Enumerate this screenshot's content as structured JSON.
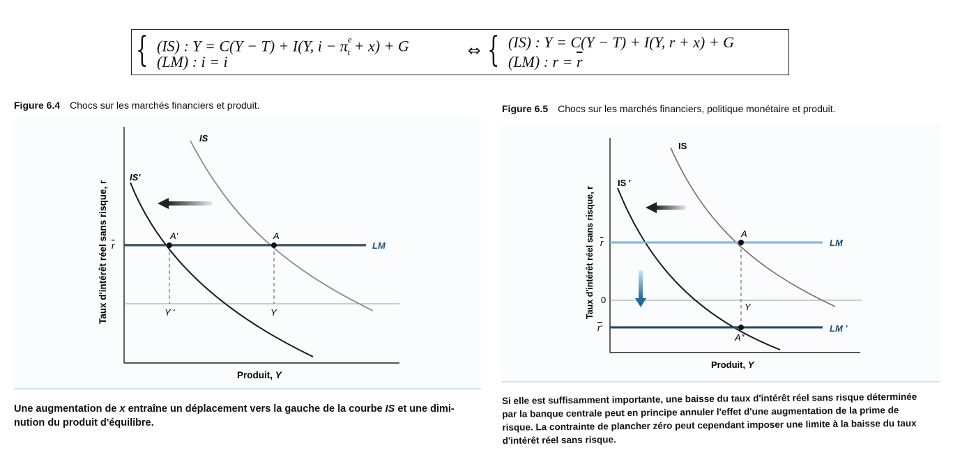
{
  "equation": {
    "left": {
      "line1": "(IS) : Y = C(Y − T) + I(Y, i − π",
      "line1_sup": "e",
      "line1_sub": "t",
      "line1_end": " + x) + G",
      "line2": "(LM) : i = i"
    },
    "equiv": "⇔",
    "right": {
      "line1": "(IS) : Y = C(Y − T) + I(Y, r + x) + G",
      "line2_prefix": "(LM) : r = ",
      "line2_rbar": "r"
    }
  },
  "fig1": {
    "number": "Figure 6.4",
    "title": "Chocs sur les marchés financiers et produit.",
    "ylabel": "Taux d'intérêt réel sans risque, r",
    "xlabel_prefix": "Produit, ",
    "xlabel_var": "Y",
    "labels": {
      "IS": "IS",
      "ISp": "IS'",
      "LM": "LM",
      "rbar": "r",
      "A": "A",
      "Ap": "A'",
      "Y": "Y",
      "Yp": "Y '"
    },
    "caption_part1": "Une augmentation de ",
    "caption_x": "x",
    "caption_part2": " entraîne un déplacement vers la gauche de la courbe ",
    "caption_IS": "IS",
    "caption_part3": " et une dimi-",
    "caption_line2": "nution du produit d'équilibre."
  },
  "fig2": {
    "number": "Figure 6.5",
    "title": "Chocs sur les marchés financiers, politique monétaire et produit.",
    "ylabel": "Taux d'intérêt réel sans risque, r",
    "xlabel_prefix": "Produit, ",
    "xlabel_var": "Y",
    "labels": {
      "IS": "IS",
      "ISp": "IS '",
      "LM": "LM",
      "LMp": "LM '",
      "rbar": "r",
      "rbarp": "r'",
      "zero": "0",
      "A": "A",
      "App": "A\"",
      "Y": "Y"
    },
    "caption_lines": [
      "Si elle est suffisamment importante, une baisse du taux d'intérêt réel sans risque déterminée",
      "par la banque centrale peut en principe annuler l'effet d'une augmentation de la prime de",
      "risque. La contrainte de plancher zéro peut cependant imposer une limite à la baisse du taux",
      "d'intérêt réel sans risque."
    ]
  },
  "colors": {
    "lm_blue": "#1f5f8b",
    "lm_light": "#7fb6d6",
    "is_gray": "#8a8a8a",
    "arrow_blue": "#2a7fb0",
    "text": "#111111"
  }
}
